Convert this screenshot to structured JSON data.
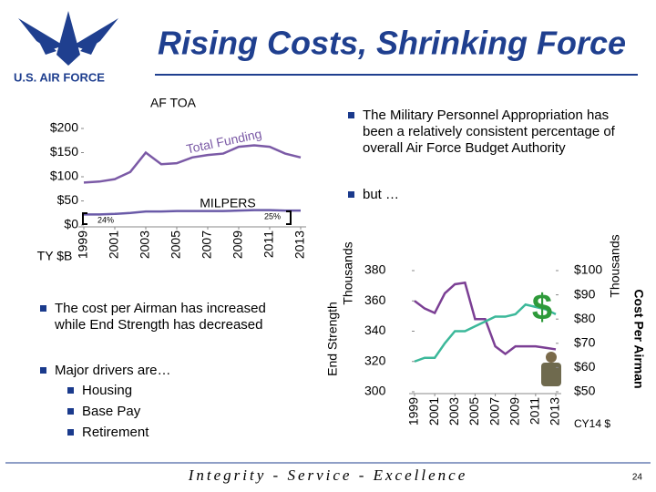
{
  "slide": {
    "title": "Rising Costs, Shrinking Force",
    "logo_text": "U.S. AIR FORCE",
    "bullets_right": [
      "The Military Personnel Appropriation has been a relatively consistent percentage of overall Air Force Budget Authority",
      "but …"
    ],
    "bullets_left": [
      "The cost per Airman has increased while End Strength has decreased",
      "Major drivers are…"
    ],
    "sub_bullets": [
      "Housing",
      "Base Pay",
      "Retirement"
    ],
    "footer": "Integrity - Service - Excellence",
    "page_number": "24"
  },
  "chart_data": [
    {
      "type": "line",
      "title": "AF TOA",
      "y_unit": "TY $B",
      "x": [
        1999,
        2000,
        2001,
        2002,
        2003,
        2004,
        2005,
        2006,
        2007,
        2008,
        2009,
        2010,
        2011,
        2012,
        2013
      ],
      "xlim": [
        1999,
        2013
      ],
      "xticks": [
        1999,
        2001,
        2003,
        2005,
        2007,
        2009,
        2011,
        2013
      ],
      "ylim": [
        0,
        200
      ],
      "yticks": [
        {
          "value": 0,
          "label": "$0"
        },
        {
          "value": 50,
          "label": "$50"
        },
        {
          "value": 100,
          "label": "$100"
        },
        {
          "value": 150,
          "label": "$150"
        },
        {
          "value": 200,
          "label": "$200"
        }
      ],
      "series": [
        {
          "name": "Total Funding",
          "color": "#7b5aa6",
          "values": [
            88,
            90,
            95,
            110,
            150,
            126,
            128,
            140,
            145,
            148,
            162,
            165,
            162,
            148,
            140
          ]
        },
        {
          "name": "MILPERS",
          "color": "#6a5aa8",
          "values": [
            22,
            22,
            23,
            25,
            28,
            28,
            29,
            29,
            29,
            29,
            30,
            31,
            31,
            30,
            30
          ]
        }
      ],
      "annotations": [
        "24%",
        "25%"
      ]
    },
    {
      "type": "line",
      "y_label": "End Strength",
      "y_unit": "Thousands",
      "y2_label": "Cost Per Airman",
      "y2_unit": "Thousands",
      "y2_note": "CY14 $",
      "symbol": "$",
      "x": [
        1999,
        2000,
        2001,
        2002,
        2003,
        2004,
        2005,
        2006,
        2007,
        2008,
        2009,
        2010,
        2011,
        2012,
        2013
      ],
      "xlim": [
        1999,
        2013
      ],
      "xticks": [
        1999,
        2001,
        2003,
        2005,
        2007,
        2009,
        2011,
        2013
      ],
      "ylim": [
        300,
        380
      ],
      "yticks": [
        300,
        320,
        340,
        360,
        380
      ],
      "y2lim": [
        50,
        100
      ],
      "y2ticks": [
        {
          "value": 50,
          "label": "$50"
        },
        {
          "value": 60,
          "label": "$60"
        },
        {
          "value": 70,
          "label": "$70"
        },
        {
          "value": 80,
          "label": "$80"
        },
        {
          "value": 90,
          "label": "$90"
        },
        {
          "value": 100,
          "label": "$100"
        }
      ],
      "series": [
        {
          "color": "#7b3f94",
          "values": [
            360,
            355,
            352,
            365,
            371,
            372,
            348,
            348,
            330,
            325,
            330,
            330,
            330,
            329,
            328
          ]
        },
        {
          "color": "#3cb89a",
          "axis": "y2",
          "values": [
            62.5,
            64,
            64,
            70,
            75,
            75,
            77,
            79,
            81,
            81,
            82,
            86,
            85,
            84,
            82
          ]
        }
      ]
    }
  ]
}
